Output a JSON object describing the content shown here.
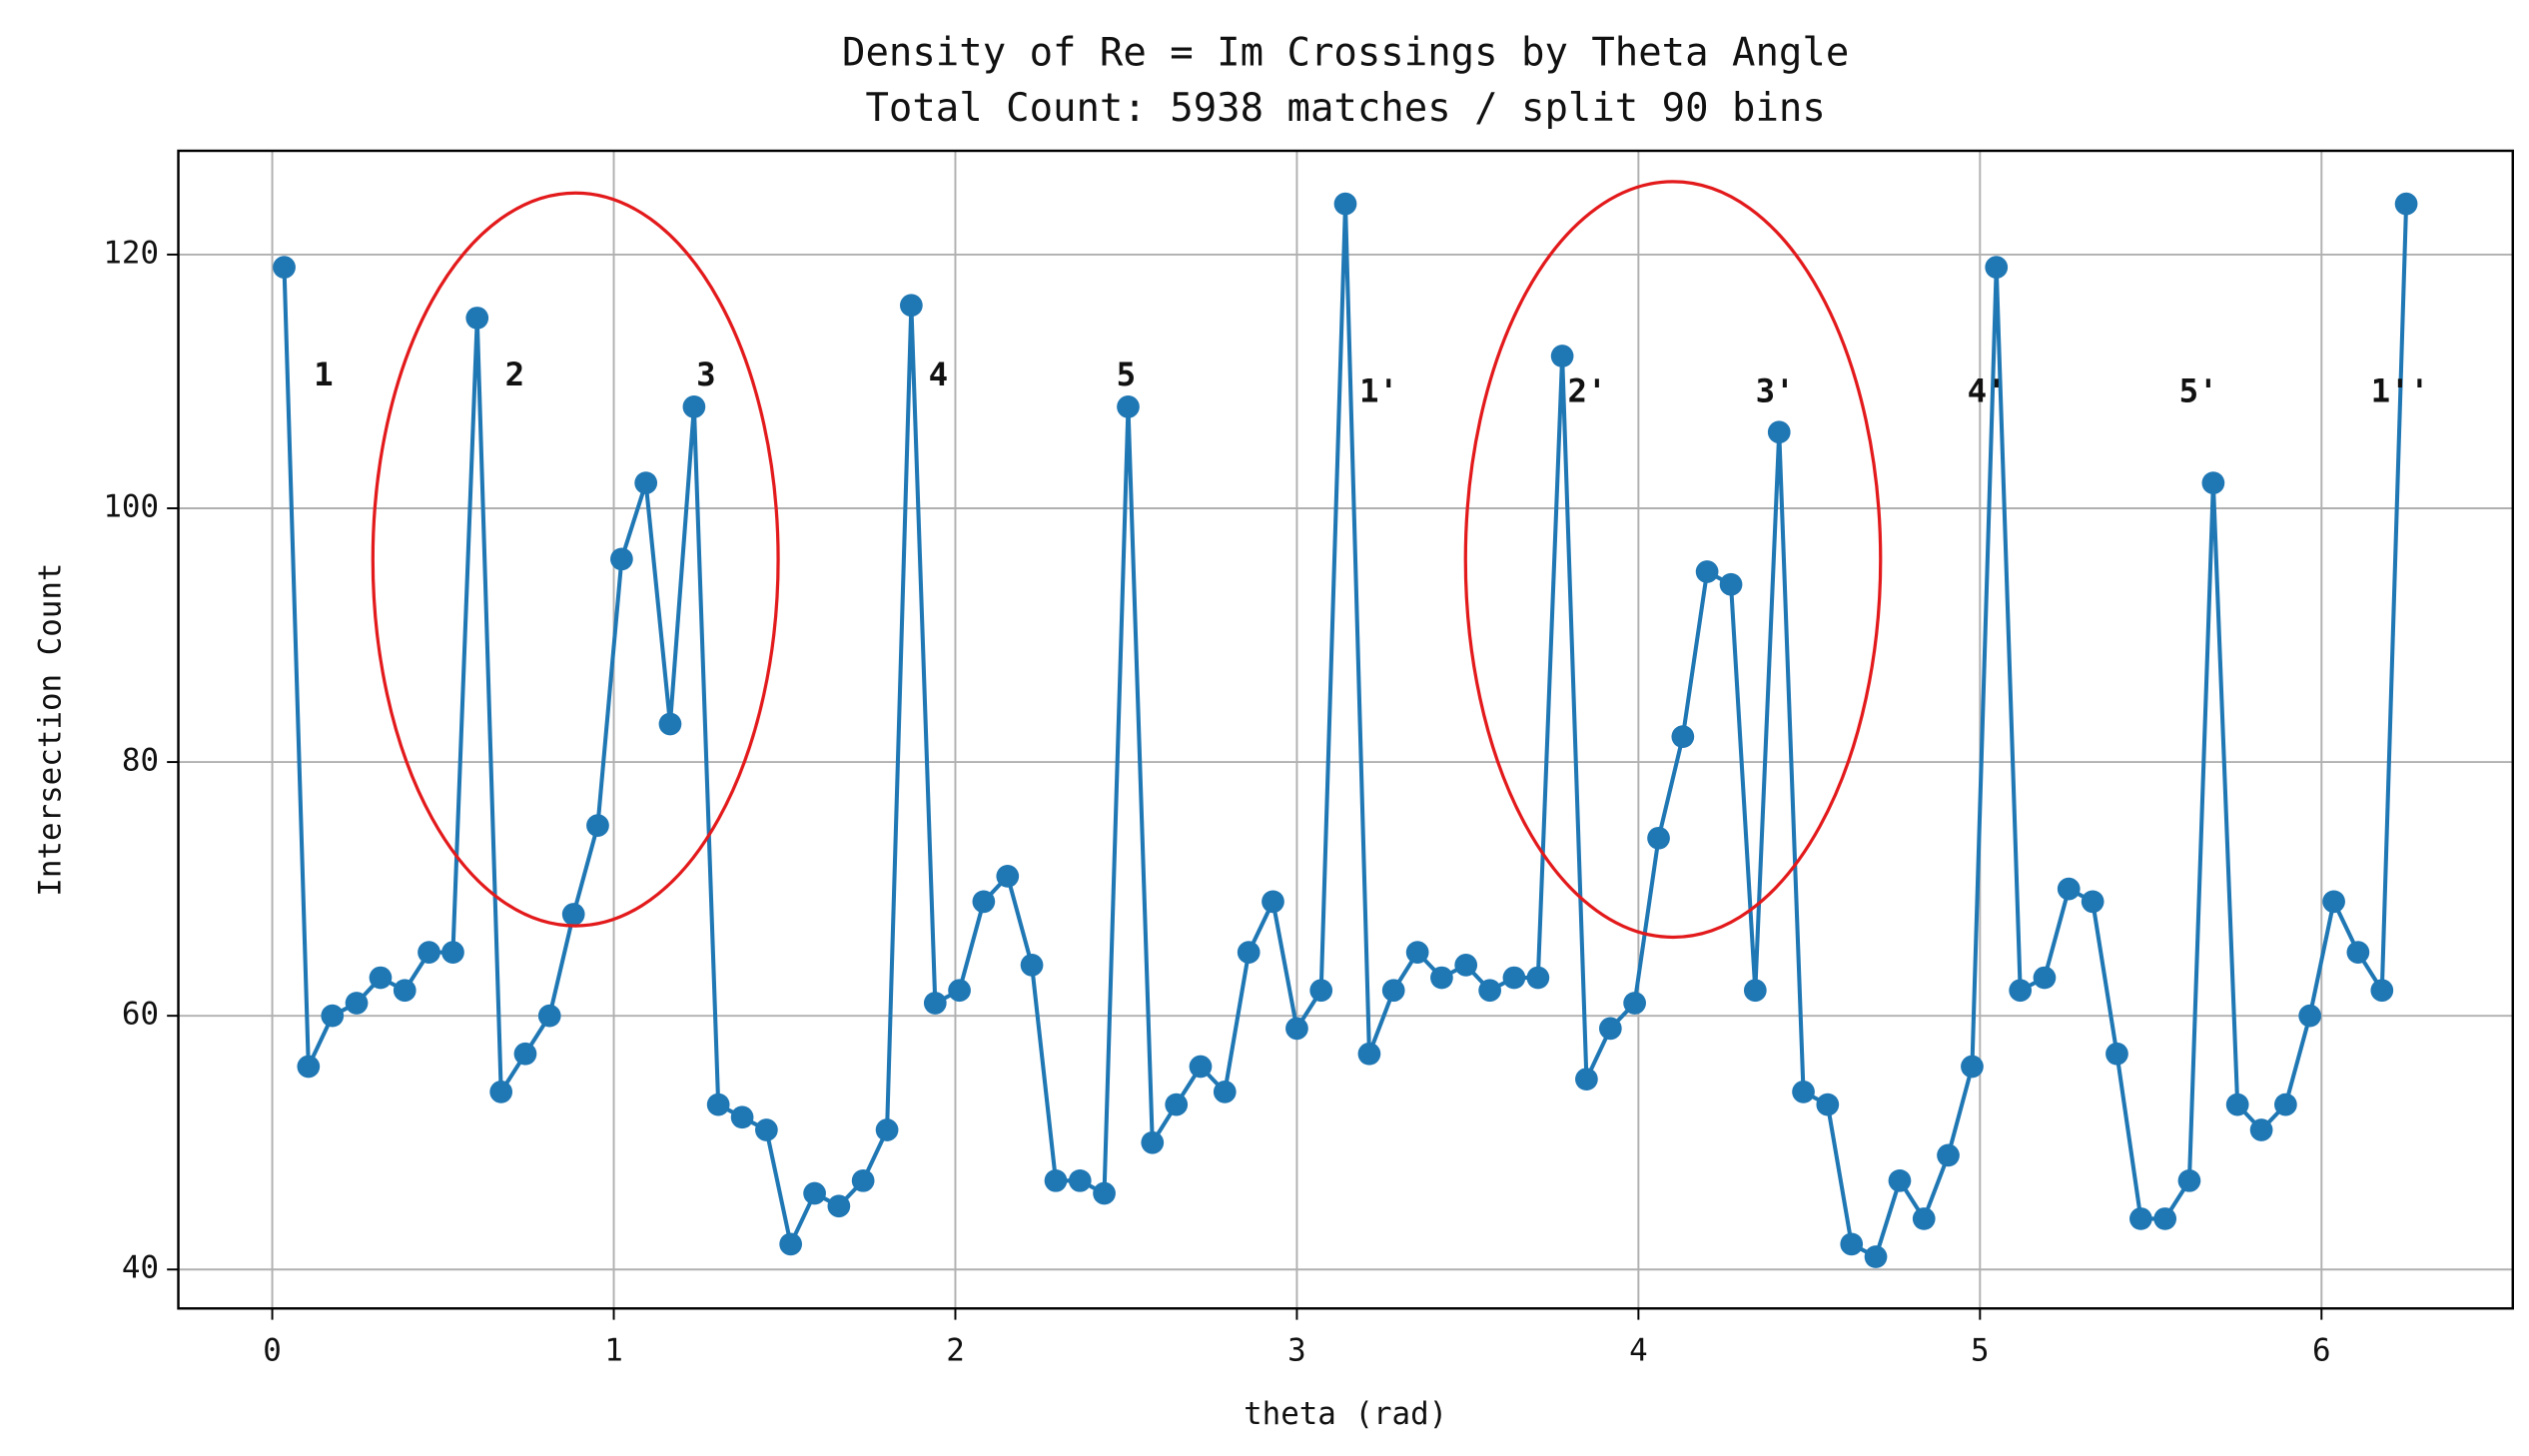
{
  "chart_data": {
    "type": "line",
    "title": "Density of Re = Im Crossings by Theta Angle",
    "subtitle": "Total Count: 5938 matches / split 90 bins",
    "x_label": "theta (rad)",
    "y_label": "Intersection Count",
    "x": [
      0.035,
      0.106,
      0.176,
      0.247,
      0.317,
      0.388,
      0.459,
      0.529,
      0.6,
      0.67,
      0.741,
      0.812,
      0.882,
      0.953,
      1.023,
      1.094,
      1.165,
      1.235,
      1.306,
      1.376,
      1.447,
      1.518,
      1.588,
      1.659,
      1.73,
      1.8,
      1.871,
      1.941,
      2.012,
      2.083,
      2.153,
      2.224,
      2.294,
      2.365,
      2.436,
      2.506,
      2.577,
      2.647,
      2.718,
      2.789,
      2.859,
      2.93,
      3.0,
      3.071,
      3.142,
      3.212,
      3.283,
      3.353,
      3.424,
      3.495,
      3.565,
      3.636,
      3.706,
      3.777,
      3.848,
      3.918,
      3.989,
      4.059,
      4.13,
      4.201,
      4.271,
      4.342,
      4.412,
      4.483,
      4.554,
      4.624,
      4.695,
      4.765,
      4.836,
      4.907,
      4.977,
      5.048,
      5.118,
      5.189,
      5.26,
      5.33,
      5.401,
      5.471,
      5.542,
      5.613,
      5.683,
      5.754,
      5.824,
      5.895,
      5.966,
      6.036,
      6.107,
      6.177,
      6.248
    ],
    "series": [
      {
        "color": "#1f77b4",
        "values": [
          119,
          56,
          60,
          61,
          63,
          62,
          65,
          65,
          115,
          54,
          57,
          60,
          68,
          75,
          96,
          102,
          83,
          108,
          53,
          52,
          51,
          42,
          46,
          45,
          47,
          51,
          116,
          61,
          62,
          69,
          71,
          64,
          47,
          47,
          46,
          108,
          50,
          53,
          56,
          54,
          65,
          69,
          59,
          62,
          124,
          57,
          62,
          65,
          63,
          64,
          62,
          63,
          63,
          112,
          55,
          59,
          61,
          74,
          82,
          95,
          94,
          62,
          106,
          54,
          53,
          42,
          41,
          47,
          44,
          49,
          56,
          119,
          62,
          63,
          70,
          69,
          57,
          44,
          44,
          47,
          102,
          53,
          51,
          53,
          60,
          69,
          65,
          62,
          124
        ]
      }
    ],
    "annotations": [
      "1",
      "2",
      "3",
      "4",
      "5",
      "1'",
      "2'",
      "3'",
      "4'",
      "5'",
      "1''"
    ],
    "annotation_color": "#ee1111",
    "xlim": [
      -0.275,
      6.56
    ],
    "ylim": [
      36.93,
      128.18
    ],
    "xticks": [
      0,
      1,
      2,
      3,
      4,
      5,
      6
    ],
    "yticks": [
      40,
      60,
      80,
      100,
      120
    ],
    "grid": true
  }
}
